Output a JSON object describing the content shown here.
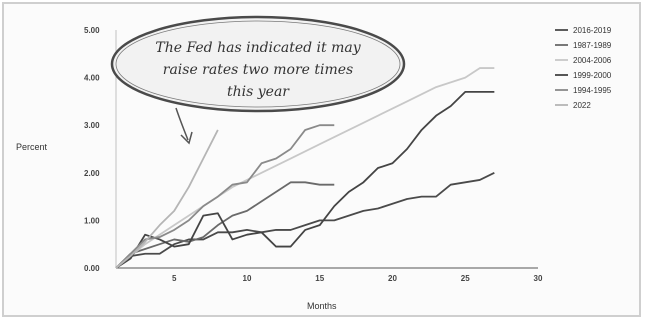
{
  "chart_data": {
    "type": "line",
    "xlabel": "Months",
    "ylabel": "Percent",
    "xlim": [
      1,
      30
    ],
    "ylim": [
      0,
      5
    ],
    "x_ticks": [
      "5",
      "10",
      "15",
      "20",
      "25",
      "30"
    ],
    "y_ticks": [
      "0.00",
      "1.00",
      "2.00",
      "3.00",
      "4.00",
      "5.00"
    ],
    "grid": false,
    "legend_position": "right",
    "annotation": {
      "lines": [
        "The Fed has indicated it may",
        "raise rates two more times",
        "this year"
      ]
    },
    "series": [
      {
        "name": "2016-2019",
        "color": "#4a4a4a",
        "x": [
          1,
          2,
          3,
          4,
          5,
          6,
          7,
          8,
          9,
          10,
          11,
          12,
          13,
          14,
          15,
          16,
          17,
          18,
          19,
          20,
          21,
          22,
          23,
          24,
          25,
          26,
          27
        ],
        "y": [
          0,
          0.25,
          0.3,
          0.3,
          0.5,
          0.6,
          0.6,
          0.75,
          0.75,
          0.8,
          0.75,
          0.8,
          0.8,
          0.9,
          1.0,
          1.0,
          1.1,
          1.2,
          1.25,
          1.35,
          1.45,
          1.5,
          1.5,
          1.75,
          1.8,
          1.85,
          2.0
        ]
      },
      {
        "name": "1987-1989",
        "color": "#6a6a6a",
        "x": [
          1,
          2,
          3,
          4,
          5,
          6,
          7,
          8,
          9,
          10,
          11,
          12,
          13,
          14,
          15,
          16
        ],
        "y": [
          0,
          0.3,
          0.4,
          0.5,
          0.6,
          0.55,
          0.65,
          0.9,
          1.1,
          1.2,
          1.4,
          1.6,
          1.8,
          1.8,
          1.75,
          1.75
        ]
      },
      {
        "name": "2004-2006",
        "color": "#c8c8c8",
        "x": [
          1,
          3,
          5,
          7,
          9,
          11,
          13,
          15,
          17,
          19,
          21,
          23,
          25,
          26,
          27
        ],
        "y": [
          0,
          0.5,
          0.9,
          1.3,
          1.7,
          2.0,
          2.3,
          2.6,
          2.9,
          3.2,
          3.5,
          3.8,
          4.0,
          4.2,
          4.2
        ]
      },
      {
        "name": "1999-2000",
        "color": "#444444",
        "x": [
          1,
          2,
          3,
          4,
          5,
          6,
          7,
          8,
          9,
          10,
          11,
          12,
          13,
          14,
          15,
          16,
          17,
          18,
          19,
          20,
          21,
          22,
          23,
          24,
          25,
          26,
          27
        ],
        "y": [
          0,
          0.2,
          0.7,
          0.6,
          0.45,
          0.5,
          1.1,
          1.15,
          0.6,
          0.7,
          0.75,
          0.45,
          0.45,
          0.8,
          0.9,
          1.3,
          1.6,
          1.8,
          2.1,
          2.2,
          2.5,
          2.9,
          3.2,
          3.4,
          3.7,
          3.7,
          3.7
        ]
      },
      {
        "name": "1994-1995",
        "color": "#8a8a8a",
        "x": [
          1,
          2,
          3,
          4,
          5,
          6,
          7,
          8,
          9,
          10,
          11,
          12,
          13,
          14,
          15,
          16
        ],
        "y": [
          0,
          0.3,
          0.6,
          0.65,
          0.8,
          1.0,
          1.3,
          1.5,
          1.75,
          1.8,
          2.2,
          2.3,
          2.5,
          2.9,
          3.0,
          3.0
        ]
      },
      {
        "name": "2022",
        "color": "#b5b5b5",
        "x": [
          1,
          2,
          3,
          4,
          5,
          6,
          7,
          8
        ],
        "y": [
          0,
          0.25,
          0.55,
          0.9,
          1.2,
          1.7,
          2.3,
          2.9
        ]
      }
    ]
  }
}
